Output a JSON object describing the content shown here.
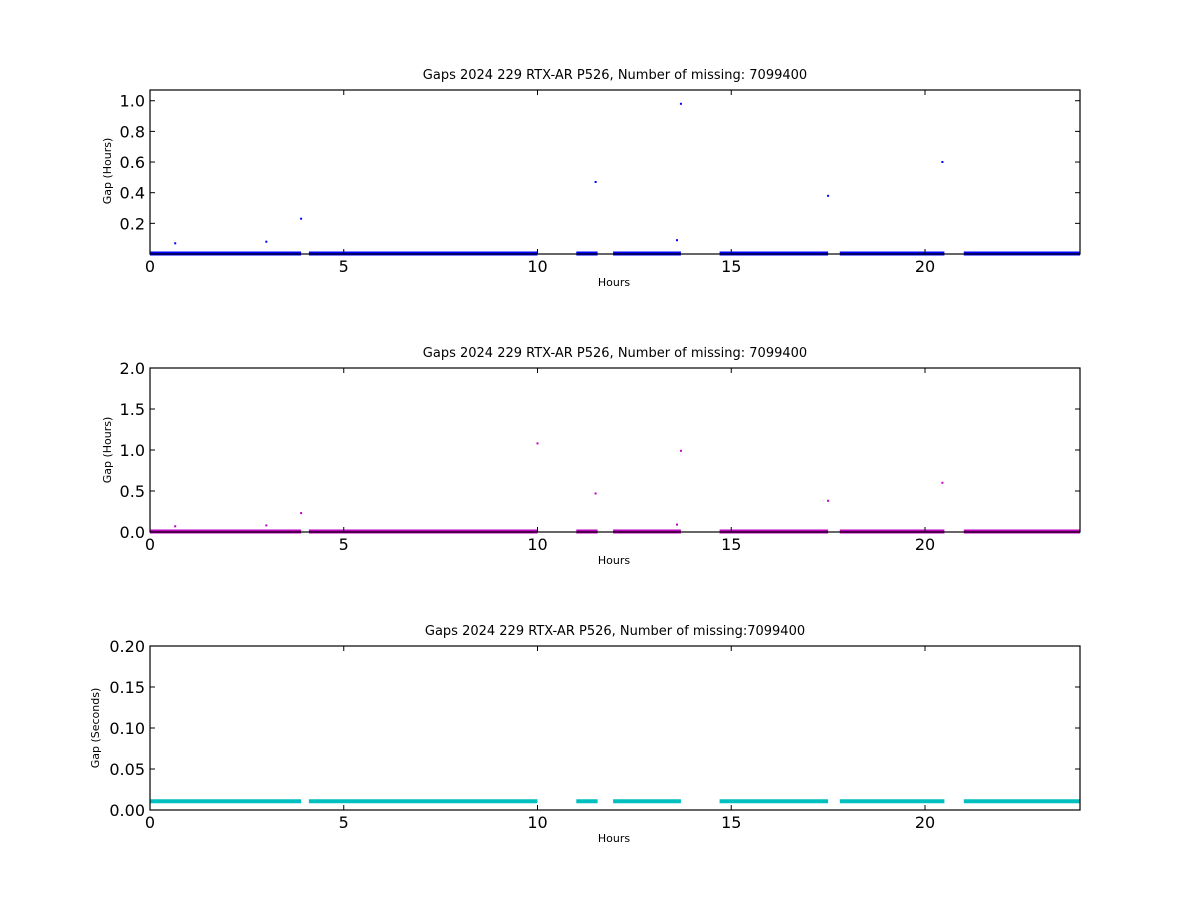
{
  "chart_data": [
    {
      "type": "scatter",
      "title": "Gaps 2024 229 RTX-AR  P526, Number of missing: 7099400",
      "xlabel": "Hours",
      "ylabel": "Gap (Hours)",
      "xlim": [
        0,
        24
      ],
      "ylim": [
        0,
        1.07
      ],
      "xticks": [
        "0",
        "5",
        "10",
        "15",
        "20"
      ],
      "yticks": [
        "0.2",
        "0.4",
        "0.6",
        "0.8",
        "1.0"
      ],
      "grid": false,
      "color": "#0000ff",
      "baseline_value": 0.0,
      "baseline_segments": [
        [
          0,
          3.9
        ],
        [
          4.1,
          10.0
        ],
        [
          11.0,
          11.55
        ],
        [
          11.95,
          13.7
        ],
        [
          14.7,
          17.5
        ],
        [
          17.8,
          20.5
        ],
        [
          21.0,
          24.0
        ]
      ],
      "points": [
        {
          "x": 0.65,
          "y": 0.07
        },
        {
          "x": 3.0,
          "y": 0.08
        },
        {
          "x": 3.6,
          "y": 0.01
        },
        {
          "x": 3.9,
          "y": 0.23
        },
        {
          "x": 5.2,
          "y": 0.01
        },
        {
          "x": 5.6,
          "y": 0.01
        },
        {
          "x": 11.5,
          "y": 0.47
        },
        {
          "x": 13.6,
          "y": 0.09
        },
        {
          "x": 13.7,
          "y": 0.98
        },
        {
          "x": 15.2,
          "y": 0.01
        },
        {
          "x": 17.5,
          "y": 0.38
        },
        {
          "x": 19.1,
          "y": 0.01
        },
        {
          "x": 20.45,
          "y": 0.6
        },
        {
          "x": 22.5,
          "y": 0.01
        }
      ]
    },
    {
      "type": "scatter",
      "title": "Gaps 2024 229 RTX-AR  P526, Number of missing: 7099400",
      "xlabel": "Hours",
      "ylabel": "Gap (Hours)",
      "xlim": [
        0,
        24
      ],
      "ylim": [
        0,
        2.0
      ],
      "xticks": [
        "0",
        "5",
        "10",
        "15",
        "20"
      ],
      "yticks": [
        "0.0",
        "0.5",
        "1.0",
        "1.5",
        "2.0"
      ],
      "grid": false,
      "color": "#bf00bf",
      "baseline_value": 0.0,
      "baseline_segments": [
        [
          0,
          3.9
        ],
        [
          4.1,
          10.0
        ],
        [
          11.0,
          11.55
        ],
        [
          11.95,
          13.7
        ],
        [
          14.7,
          17.5
        ],
        [
          17.8,
          20.5
        ],
        [
          21.0,
          24.0
        ]
      ],
      "points": [
        {
          "x": 0.65,
          "y": 0.07
        },
        {
          "x": 3.0,
          "y": 0.08
        },
        {
          "x": 3.9,
          "y": 0.23
        },
        {
          "x": 10.0,
          "y": 1.08
        },
        {
          "x": 11.5,
          "y": 0.47
        },
        {
          "x": 13.6,
          "y": 0.09
        },
        {
          "x": 13.7,
          "y": 0.99
        },
        {
          "x": 17.5,
          "y": 0.38
        },
        {
          "x": 20.45,
          "y": 0.6
        }
      ]
    },
    {
      "type": "scatter",
      "title": "Gaps 2024 229 RTX-AR  P526, Number of missing:7099400",
      "xlabel": "Hours",
      "ylabel": "Gap (Seconds)",
      "xlim": [
        0,
        24
      ],
      "ylim": [
        0,
        0.2
      ],
      "xticks": [
        "0",
        "5",
        "10",
        "15",
        "20"
      ],
      "yticks": [
        "0.00",
        "0.05",
        "0.10",
        "0.15",
        "0.20"
      ],
      "grid": false,
      "color": "#00bfbf",
      "baseline_value": 0.01,
      "baseline_segments": [
        [
          0,
          3.9
        ],
        [
          4.1,
          10.0
        ],
        [
          11.0,
          11.55
        ],
        [
          11.95,
          13.7
        ],
        [
          14.7,
          17.5
        ],
        [
          17.8,
          20.5
        ],
        [
          21.0,
          24.0
        ]
      ],
      "points": []
    }
  ]
}
